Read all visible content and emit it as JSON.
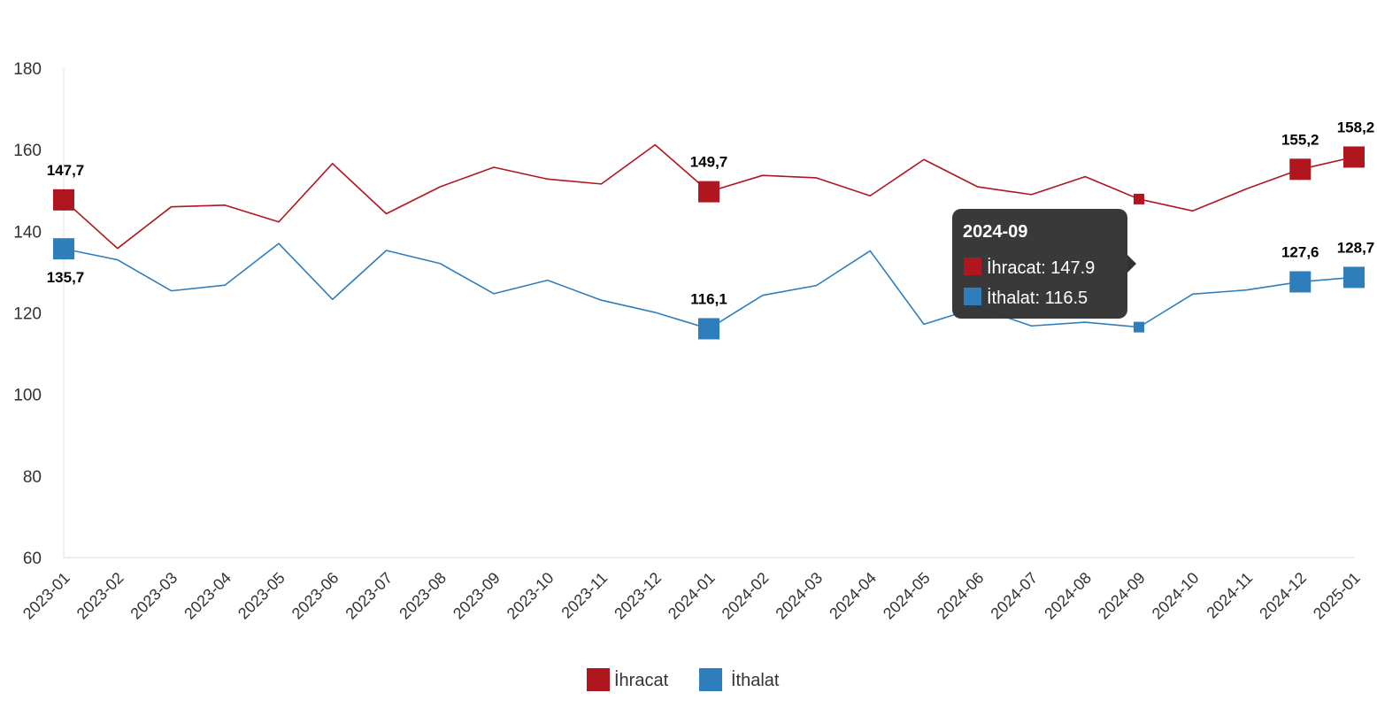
{
  "chart_data": {
    "type": "line",
    "title": "",
    "xlabel": "",
    "ylabel": "",
    "ylim": [
      60,
      180
    ],
    "yticks": [
      60,
      80,
      100,
      120,
      140,
      160,
      180
    ],
    "grid": false,
    "legend_position": "bottom-center",
    "categories": [
      "2023-01",
      "2023-02",
      "2023-03",
      "2023-04",
      "2023-05",
      "2023-06",
      "2023-07",
      "2023-08",
      "2023-09",
      "2023-10",
      "2023-11",
      "2023-12",
      "2024-01",
      "2024-02",
      "2024-03",
      "2024-04",
      "2024-05",
      "2024-06",
      "2024-07",
      "2024-08",
      "2024-09",
      "2024-10",
      "2024-11",
      "2024-12",
      "2025-01"
    ],
    "series": [
      {
        "name": "İhracat",
        "color": "#b0161e",
        "values": [
          147.7,
          135.8,
          146.0,
          146.4,
          142.3,
          156.6,
          144.3,
          150.9,
          155.7,
          152.8,
          151.6,
          161.2,
          149.7,
          153.7,
          153.1,
          148.7,
          157.6,
          150.9,
          149.0,
          153.4,
          147.9,
          145.0,
          150.4,
          155.2,
          158.2
        ]
      },
      {
        "name": "İthalat",
        "color": "#2f7ebc",
        "values": [
          135.7,
          133.0,
          125.4,
          126.8,
          137.0,
          123.3,
          135.3,
          132.1,
          124.7,
          128.0,
          123.1,
          120.1,
          116.1,
          124.3,
          126.7,
          135.2,
          117.2,
          121.3,
          116.8,
          117.7,
          116.5,
          124.6,
          125.6,
          127.6,
          128.7
        ]
      }
    ],
    "data_labels": [
      {
        "series": 0,
        "index": 0,
        "text": "147,7"
      },
      {
        "series": 0,
        "index": 12,
        "text": "149,7"
      },
      {
        "series": 0,
        "index": 23,
        "text": "155,2"
      },
      {
        "series": 0,
        "index": 24,
        "text": "158,2"
      },
      {
        "series": 1,
        "index": 0,
        "text": "135,7"
      },
      {
        "series": 1,
        "index": 12,
        "text": "116,1"
      },
      {
        "series": 1,
        "index": 23,
        "text": "127,6"
      },
      {
        "series": 1,
        "index": 24,
        "text": "128,7"
      }
    ],
    "tooltip": {
      "index": 20,
      "title": "2024-09",
      "lines": [
        "İhracat: 147.9",
        "İthalat: 116.5"
      ]
    }
  }
}
